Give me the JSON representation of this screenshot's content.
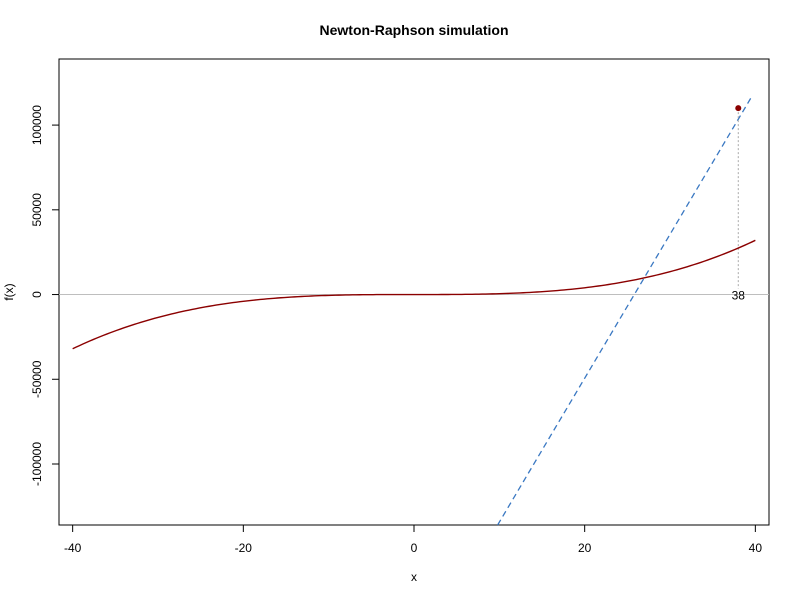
{
  "chart_data": {
    "type": "line",
    "title": "Newton-Raphson simulation",
    "xlabel": "x",
    "ylabel": "f(x)",
    "xlim": [
      -41.6,
      41.6
    ],
    "ylim": [
      -136000,
      139000
    ],
    "x_ticks": [
      -40,
      -20,
      0,
      20,
      40
    ],
    "x_tick_labels": [
      "-40",
      "-20",
      "0",
      "20",
      "40"
    ],
    "y_ticks": [
      -100000,
      -50000,
      0,
      50000,
      100000
    ],
    "y_tick_labels": [
      "-100000",
      "-50000",
      "0",
      "50000",
      "100000"
    ],
    "curve": {
      "function": "x^3/2",
      "x_range": [
        -40,
        40
      ],
      "color": "#8b0000"
    },
    "zero_line": {
      "y": 0,
      "color": "#bebebe"
    },
    "current_point": {
      "x": 38,
      "y": 110000,
      "color": "#8b0000"
    },
    "tangent": {
      "through": [
        38,
        110000
      ],
      "slope": 4400,
      "color": "#3a78c2",
      "style": "dashed"
    },
    "tangent_bottom": {
      "x": 9.8,
      "y": -136000
    },
    "drop_line": {
      "x": 38,
      "from_y": 110000,
      "to_y": 0,
      "color": "#aaaaaa",
      "style": "dotted"
    },
    "annotation": {
      "text": "38",
      "x": 38,
      "y": 0
    }
  }
}
